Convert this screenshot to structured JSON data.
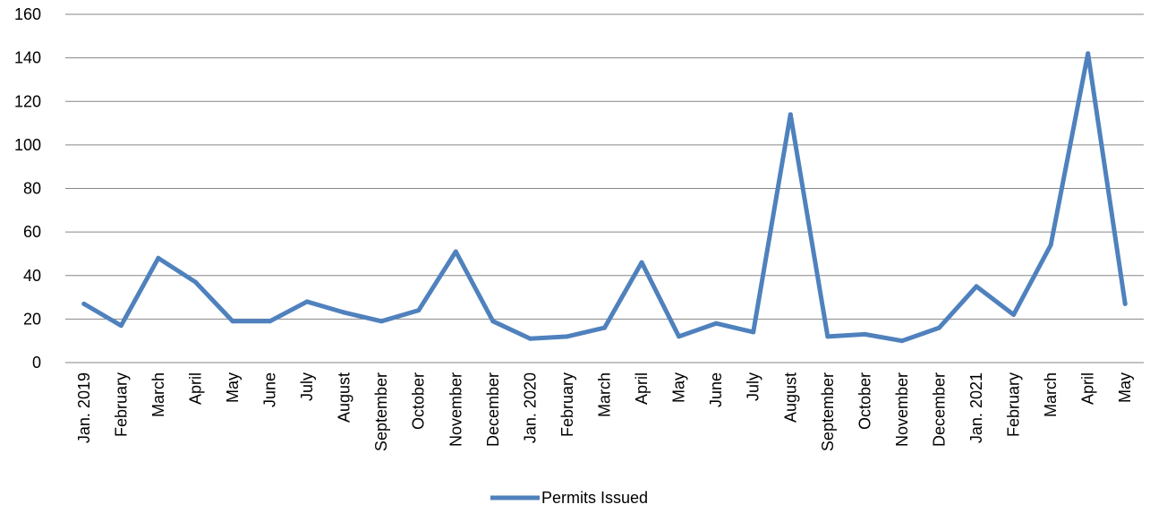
{
  "chart_data": {
    "type": "line",
    "categories": [
      "Jan. 2019",
      "February",
      "March",
      "April",
      "May",
      "June",
      "July",
      "August",
      "September",
      "October",
      "November",
      "December",
      "Jan. 2020",
      "February",
      "March",
      "April",
      "May",
      "June",
      "July",
      "August",
      "September",
      "October",
      "November",
      "December",
      "Jan. 2021",
      "February",
      "March",
      "April",
      "May"
    ],
    "series": [
      {
        "name": "Permits Issued",
        "color": "#4F81BD",
        "values": [
          27,
          17,
          48,
          37,
          19,
          19,
          28,
          23,
          19,
          24,
          51,
          19,
          11,
          12,
          16,
          46,
          12,
          18,
          14,
          114,
          12,
          13,
          10,
          16,
          35,
          22,
          54,
          142,
          27
        ]
      }
    ],
    "ylim": [
      0,
      160
    ],
    "yticks": [
      "0",
      "20",
      "40",
      "60",
      "80",
      "100",
      "120",
      "140",
      "160"
    ],
    "grid": true,
    "legend": "bottom-center",
    "title": "",
    "xlabel": "",
    "ylabel": ""
  }
}
